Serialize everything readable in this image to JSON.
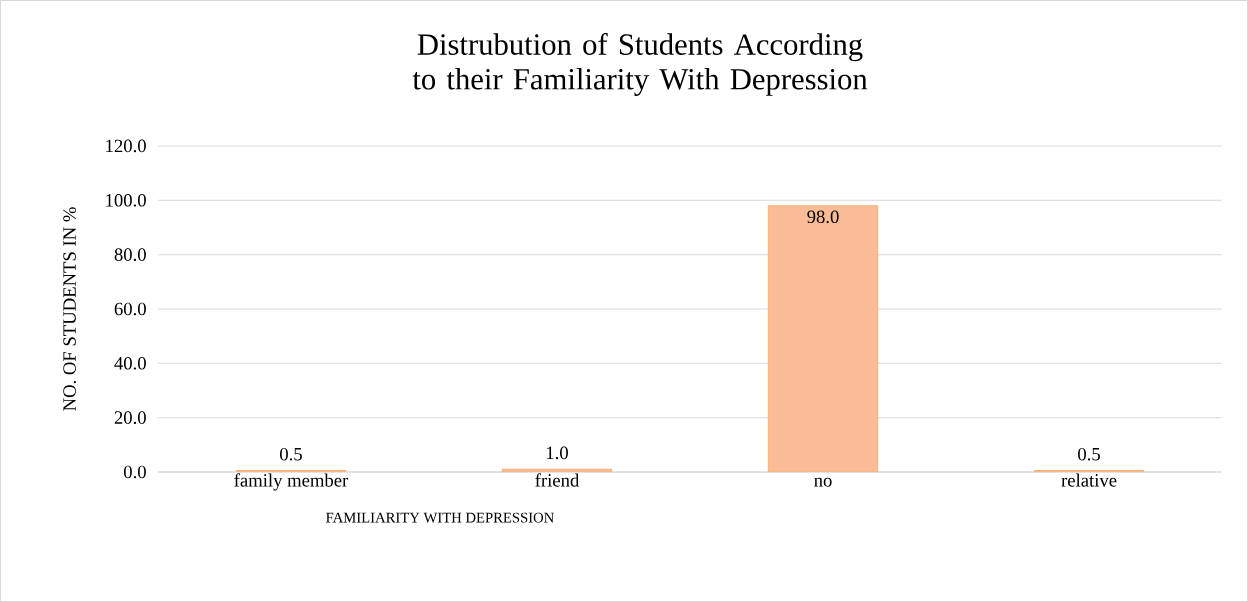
{
  "chart_data": {
    "type": "bar",
    "title": "Distrubution of Students According to their Familiarity With Depression",
    "xlabel": "FAMILIARITY WITH DEPRESSION",
    "ylabel": "NO. OF STUDENTS IN %",
    "categories": [
      "family member",
      "friend",
      "no",
      "relative"
    ],
    "values": [
      0.5,
      1.0,
      98.0,
      0.5
    ],
    "value_labels": [
      "0.5",
      "1.0",
      "98.0",
      "0.5"
    ],
    "color": "#f9bc96",
    "ylim": [
      0,
      120
    ],
    "yticks": [
      {
        "value": 0,
        "label": "0.0"
      },
      {
        "value": 20,
        "label": "20.0"
      },
      {
        "value": 40,
        "label": "40.0"
      },
      {
        "value": 60,
        "label": "60.0"
      },
      {
        "value": 80,
        "label": "80.0"
      },
      {
        "value": 100,
        "label": "100.0"
      },
      {
        "value": 120,
        "label": "120.0"
      }
    ],
    "grid": "y"
  }
}
